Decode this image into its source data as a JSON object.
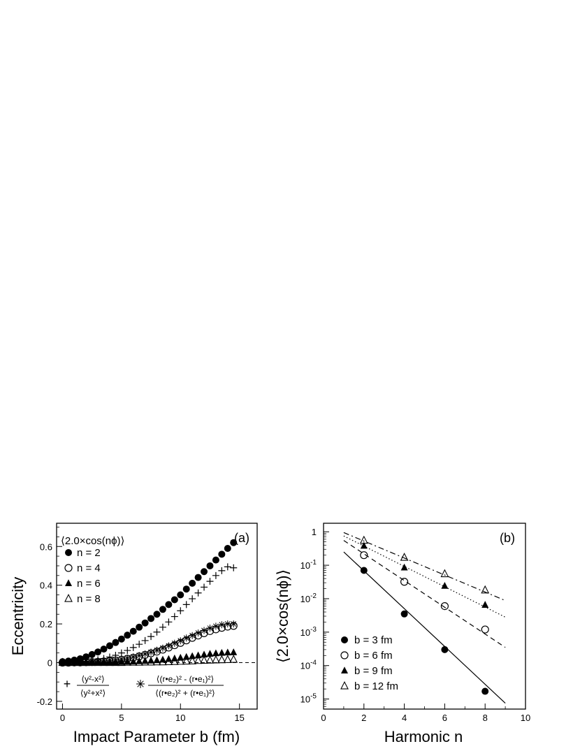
{
  "chart_data": [
    {
      "type": "scatter",
      "panel_label": "(a)",
      "xlabel": "Impact Parameter b (fm)",
      "ylabel": "Eccentricity",
      "xlim": [
        -0.5,
        16.5
      ],
      "ylim": [
        -0.24,
        0.72
      ],
      "x_ticks": [
        0,
        5,
        10,
        15
      ],
      "y_ticks": [
        -0.2,
        0,
        0.2,
        0.4,
        0.6
      ],
      "y_tick_labels": [
        "-0.2",
        "0",
        "0.2",
        "0.4",
        "0.6"
      ],
      "legend_title": "⟨2.0×cos(nϕ)⟩",
      "legend_placement": "top-left",
      "zero_line": true,
      "bottom_legend": {
        "plus_num": "⟨y²-x²⟩",
        "plus_den": "⟨y²+x²⟩",
        "star_num": "⟨(r•e₂)² - (r•e₁)²⟩",
        "star_den": "⟨(r•e₂)² + (r•e₁)²⟩"
      },
      "series": [
        {
          "name": "n = 2",
          "marker": "filled-circle",
          "x": [
            0,
            0.5,
            1,
            1.5,
            2,
            2.5,
            3,
            3.5,
            4,
            4.5,
            5,
            5.5,
            6,
            6.5,
            7,
            7.5,
            8,
            8.5,
            9,
            9.5,
            10,
            10.5,
            11,
            11.5,
            12,
            12.5,
            13,
            13.5,
            14,
            14.5
          ],
          "y": [
            0.005,
            0.008,
            0.013,
            0.02,
            0.03,
            0.042,
            0.055,
            0.07,
            0.087,
            0.104,
            0.122,
            0.142,
            0.162,
            0.183,
            0.205,
            0.228,
            0.25,
            0.275,
            0.3,
            0.325,
            0.35,
            0.38,
            0.41,
            0.44,
            0.47,
            0.5,
            0.53,
            0.56,
            0.59,
            0.62
          ]
        },
        {
          "name": "n = 4",
          "marker": "open-circle",
          "x": [
            0,
            0.5,
            1,
            1.5,
            2,
            2.5,
            3,
            3.5,
            4,
            4.5,
            5,
            5.5,
            6,
            6.5,
            7,
            7.5,
            8,
            8.5,
            9,
            9.5,
            10,
            10.5,
            11,
            11.5,
            12,
            12.5,
            13,
            13.5,
            14,
            14.5
          ],
          "y": [
            0,
            0,
            0.001,
            0.001,
            0.002,
            0.003,
            0.004,
            0.006,
            0.008,
            0.011,
            0.015,
            0.02,
            0.025,
            0.032,
            0.04,
            0.048,
            0.057,
            0.067,
            0.078,
            0.09,
            0.102,
            0.115,
            0.128,
            0.14,
            0.152,
            0.163,
            0.172,
            0.18,
            0.186,
            0.19
          ]
        },
        {
          "name": "n = 6",
          "marker": "filled-triangle",
          "x": [
            0,
            0.5,
            1,
            1.5,
            2,
            2.5,
            3,
            3.5,
            4,
            4.5,
            5,
            5.5,
            6,
            6.5,
            7,
            7.5,
            8,
            8.5,
            9,
            9.5,
            10,
            10.5,
            11,
            11.5,
            12,
            12.5,
            13,
            13.5,
            14,
            14.5
          ],
          "y": [
            0,
            0,
            0,
            0,
            0,
            0,
            0.001,
            0.001,
            0.002,
            0.002,
            0.003,
            0.004,
            0.005,
            0.007,
            0.008,
            0.01,
            0.012,
            0.015,
            0.018,
            0.021,
            0.025,
            0.029,
            0.033,
            0.037,
            0.041,
            0.045,
            0.048,
            0.05,
            0.052,
            0.053
          ]
        },
        {
          "name": "n = 8",
          "marker": "open-triangle",
          "x": [
            0,
            0.5,
            1,
            1.5,
            2,
            2.5,
            3,
            3.5,
            4,
            4.5,
            5,
            5.5,
            6,
            6.5,
            7,
            7.5,
            8,
            8.5,
            9,
            9.5,
            10,
            10.5,
            11,
            11.5,
            12,
            12.5,
            13,
            13.5,
            14,
            14.5
          ],
          "y": [
            0,
            0,
            0,
            0,
            0,
            0,
            0,
            0,
            0,
            0,
            0,
            0.001,
            0.001,
            0.001,
            0.002,
            0.002,
            0.003,
            0.003,
            0.004,
            0.005,
            0.006,
            0.007,
            0.008,
            0.01,
            0.011,
            0.012,
            0.013,
            0.014,
            0.015,
            0.016
          ]
        },
        {
          "name": "⟨y²-x²⟩/⟨y²+x²⟩",
          "marker": "plus",
          "x": [
            0,
            0.5,
            1,
            1.5,
            2,
            2.5,
            3,
            3.5,
            4,
            4.5,
            5,
            5.5,
            6,
            6.5,
            7,
            7.5,
            8,
            8.5,
            9,
            9.5,
            10,
            10.5,
            11,
            11.5,
            12,
            12.5,
            13,
            13.5,
            14,
            14.5
          ],
          "y": [
            0,
            0.001,
            0.002,
            0.004,
            0.006,
            0.01,
            0.015,
            0.021,
            0.029,
            0.038,
            0.05,
            0.063,
            0.078,
            0.095,
            0.114,
            0.135,
            0.158,
            0.183,
            0.21,
            0.238,
            0.268,
            0.3,
            0.33,
            0.36,
            0.39,
            0.42,
            0.45,
            0.475,
            0.495,
            0.49
          ]
        },
        {
          "name": "⟨(r•e₂)² - (r•e₁)²⟩/⟨(r•e₂)² + (r•e₁)²⟩",
          "marker": "asterisk",
          "x": [
            0,
            0.5,
            1,
            1.5,
            2,
            2.5,
            3,
            3.5,
            4,
            4.5,
            5,
            5.5,
            6,
            6.5,
            7,
            7.5,
            8,
            8.5,
            9,
            9.5,
            10,
            10.5,
            11,
            11.5,
            12,
            12.5,
            13,
            13.5,
            14,
            14.5
          ],
          "y": [
            0.003,
            0.004,
            0.005,
            0.006,
            0.007,
            0.008,
            0.009,
            0.01,
            0.012,
            0.015,
            0.019,
            0.024,
            0.03,
            0.037,
            0.045,
            0.054,
            0.064,
            0.075,
            0.087,
            0.1,
            0.113,
            0.127,
            0.14,
            0.153,
            0.166,
            0.178,
            0.188,
            0.196,
            0.2,
            0.2
          ]
        }
      ]
    },
    {
      "type": "scatter",
      "panel_label": "(b)",
      "xlabel": "Harmonic n",
      "ylabel": "⟨2.0×cos(nϕ)⟩",
      "yscale": "log",
      "xlim": [
        0,
        10
      ],
      "ylim": [
        5e-06,
        1.8
      ],
      "x_ticks": [
        0,
        2,
        4,
        6,
        8,
        10
      ],
      "y_ticks": [
        1e-05,
        0.0001,
        0.001,
        0.01,
        0.1,
        1
      ],
      "y_tick_labels": [
        {
          "base": "10",
          "exp": "-5"
        },
        {
          "base": "10",
          "exp": "-4"
        },
        {
          "base": "10",
          "exp": "-3"
        },
        {
          "base": "10",
          "exp": "-2"
        },
        {
          "base": "10",
          "exp": "-1"
        },
        {
          "base": "1",
          "exp": ""
        }
      ],
      "legend_placement": "bottom-left",
      "series": [
        {
          "name": "b = 3 fm",
          "marker": "filled-circle",
          "line": "solid",
          "x": [
            2,
            4,
            6,
            8
          ],
          "y": [
            0.07,
            0.0035,
            0.0003,
            1.7e-05
          ],
          "fit_line": {
            "x": [
              1,
              9
            ],
            "y": [
              0.25,
              7.5e-06
            ]
          }
        },
        {
          "name": "b = 6 fm",
          "marker": "open-circle",
          "line": "dashed",
          "x": [
            2,
            4,
            6,
            8
          ],
          "y": [
            0.2,
            0.032,
            0.006,
            0.0012
          ],
          "fit_line": {
            "x": [
              1,
              9
            ],
            "y": [
              0.55,
              0.00035
            ]
          }
        },
        {
          "name": "b = 9 fm",
          "marker": "filled-triangle",
          "line": "dotted",
          "x": [
            2,
            4,
            6,
            8
          ],
          "y": [
            0.38,
            0.085,
            0.024,
            0.0065
          ],
          "fit_line": {
            "x": [
              1,
              9
            ],
            "y": [
              0.75,
              0.0028
            ]
          }
        },
        {
          "name": "b = 12 fm",
          "marker": "open-triangle",
          "line": "dash-dot",
          "x": [
            2,
            4,
            6,
            8
          ],
          "y": [
            0.55,
            0.17,
            0.055,
            0.018
          ],
          "fit_line": {
            "x": [
              1,
              9
            ],
            "y": [
              0.95,
              0.0088
            ]
          }
        }
      ]
    }
  ]
}
